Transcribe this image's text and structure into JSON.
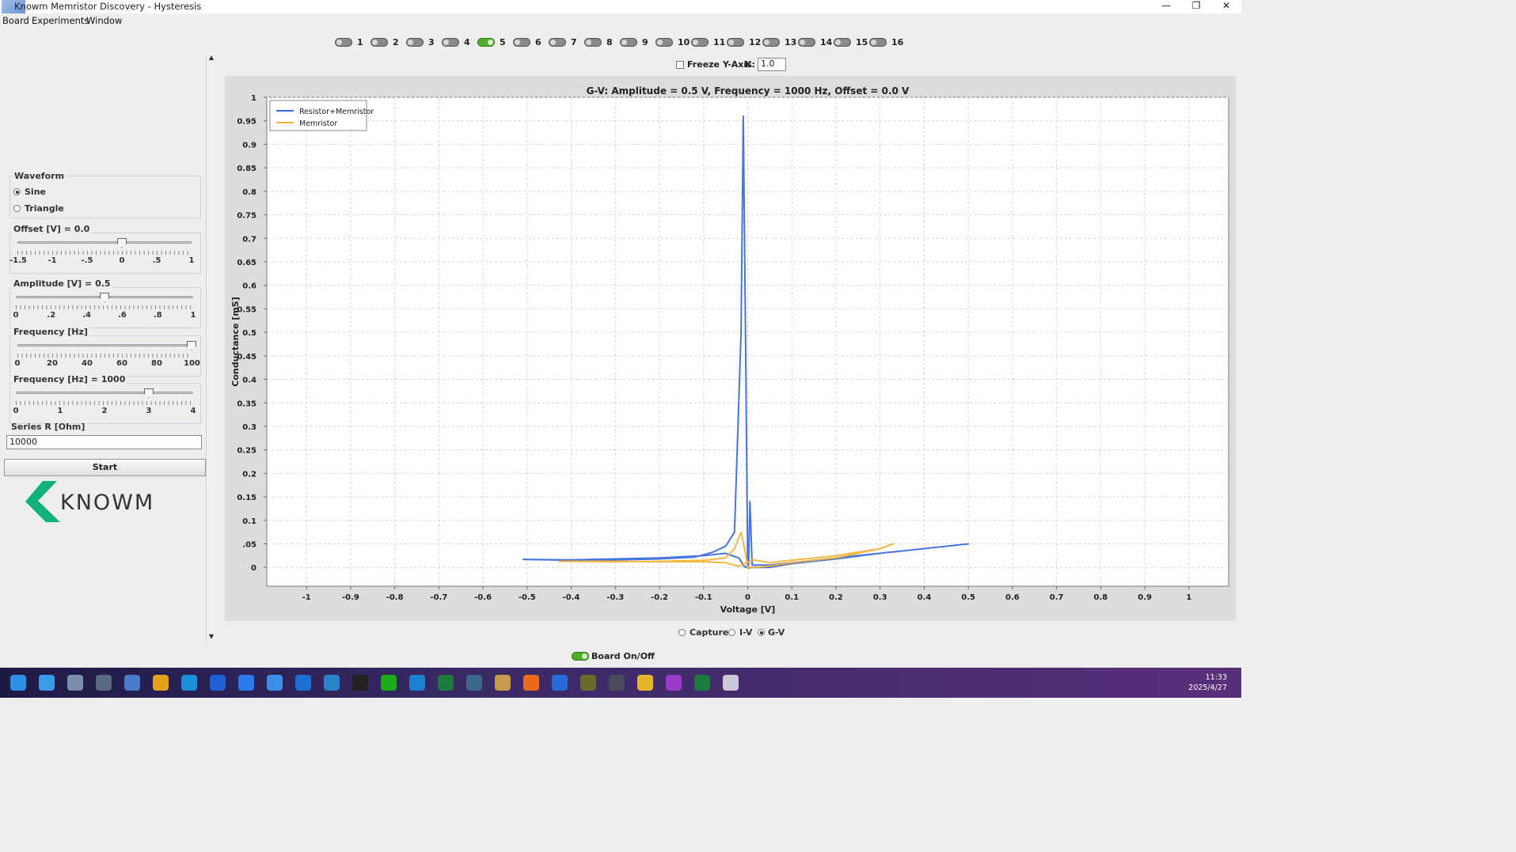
{
  "window": {
    "title": "Knowm Memristor Discovery - Hysteresis",
    "minimize_glyph": "—",
    "restore_glyph": "❐",
    "close_glyph": "✕"
  },
  "menu": [
    "Board",
    "Experiments",
    "Window"
  ],
  "channels": {
    "labels": [
      "1",
      "2",
      "3",
      "4",
      "5",
      "6",
      "7",
      "8",
      "9",
      "10",
      "11",
      "12",
      "13",
      "14",
      "15",
      "16"
    ],
    "active": "5",
    "active_color": "#4caf2a"
  },
  "freeze": {
    "label": "Freeze Y-Axis",
    "checked": false,
    "k_label": "K:",
    "k_value": "1.0"
  },
  "waveform": {
    "title": "Waveform",
    "options": [
      "Sine",
      "Triangle"
    ],
    "selected": "Sine"
  },
  "offset": {
    "title": "Offset [V] = 0.0",
    "value": 0.0,
    "min": -1.5,
    "max": 1,
    "ticks": [
      "-1.5",
      "-1",
      "-.5",
      "0",
      ".5",
      "1"
    ]
  },
  "amplitude": {
    "title": "Amplitude [V] = 0.5",
    "value": 0.5,
    "min": 0,
    "max": 1,
    "ticks": [
      "0",
      ".2",
      ".4",
      ".6",
      ".8",
      "1"
    ]
  },
  "frequency_pct": {
    "title": "Frequency [Hz]",
    "value": 100,
    "min": 0,
    "max": 100,
    "ticks": [
      "0",
      "20",
      "40",
      "60",
      "80",
      "100"
    ]
  },
  "frequency_exp": {
    "title": "Frequency [Hz] = 1000",
    "value": 3,
    "min": 0,
    "max": 4,
    "ticks": [
      "0",
      "1",
      "2",
      "3",
      "4"
    ]
  },
  "series_r": {
    "label": "Series R [Ohm]",
    "value": "10000"
  },
  "start_label": "Start",
  "logo_text": "KNOWM",
  "plot_modes": {
    "options": [
      "Capture",
      "I-V",
      "G-V"
    ],
    "selected": "G-V"
  },
  "board_toggle": {
    "label": "Board On/Off",
    "on": true
  },
  "taskbar": {
    "time": "11:33",
    "date": "2025/4/27",
    "icons": [
      "windows-start-icon",
      "notepad-icon",
      "settings-icon",
      "calculator-icon",
      "photos-icon",
      "chrome-icon",
      "edge-icon",
      "app-v-icon",
      "feishu-icon",
      "contacts-icon",
      "k-app-icon",
      "mx-icon",
      "qq-icon",
      "wechat-icon",
      "vscode-icon",
      "excel-green-icon",
      "compass-icon",
      "folder-app-icon",
      "arrow-app-icon",
      "v-app-icon",
      "spu-icon",
      "network-icon",
      "file-explorer-icon",
      "purple-app-icon",
      "excel-icon",
      "paint-icon"
    ]
  },
  "chart_data": {
    "type": "line",
    "title": "G-V: Amplitude = 0.5 V, Frequency = 1000 Hz, Offset = 0.0 V",
    "xlabel": "Voltage [V]",
    "ylabel": "Conductance [mS]",
    "xlim": [
      -1.09,
      1.09
    ],
    "ylim": [
      -0.04,
      1.0
    ],
    "xticks": [
      -1,
      -0.9,
      -0.8,
      -0.7,
      -0.6,
      -0.5,
      -0.4,
      -0.3,
      -0.2,
      -0.1,
      0,
      0.1,
      0.2,
      0.3,
      0.4,
      0.5,
      0.6,
      0.7,
      0.8,
      0.9,
      1
    ],
    "xtick_labels": [
      "-1",
      "-0.9",
      "-0.8",
      "-0.7",
      "-0.6",
      "-0.5",
      "-0.4",
      "-0.3",
      "-0.2",
      "-0.1",
      "0",
      "0.1",
      "0.2",
      "0.3",
      "0.4",
      "0.5",
      "0.6",
      "0.7",
      "0.8",
      "0.9",
      "1"
    ],
    "yticks": [
      0,
      0.05,
      0.1,
      0.15,
      0.2,
      0.25,
      0.3,
      0.35,
      0.4,
      0.45,
      0.5,
      0.55,
      0.6,
      0.65,
      0.7,
      0.75,
      0.8,
      0.85,
      0.9,
      0.95,
      1
    ],
    "ytick_labels": [
      "0",
      ".05",
      "0.1",
      "0.15",
      "0.2",
      "0.25",
      "0.3",
      "0.35",
      "0.4",
      "0.45",
      "0.5",
      "0.55",
      "0.6",
      "0.65",
      "0.7",
      "0.75",
      "0.8",
      "0.85",
      "0.9",
      "0.95",
      "1"
    ],
    "grid": true,
    "legend_position": "top-left",
    "series": [
      {
        "name": "Resistor+Memristor",
        "color": "#3366dd",
        "x": [
          -0.51,
          -0.4,
          -0.3,
          -0.2,
          -0.12,
          -0.08,
          -0.05,
          -0.03,
          -0.015,
          -0.01,
          -0.005,
          0.0,
          0.002,
          0.005,
          0.05,
          0.1,
          0.2,
          0.3,
          0.4,
          0.5,
          0.4,
          0.3,
          0.2,
          0.1,
          0.05,
          0.01,
          0.005,
          0.002,
          -0.005,
          -0.01,
          -0.02,
          -0.05,
          -0.1,
          -0.2,
          -0.3,
          -0.4,
          -0.51
        ],
        "y": [
          0.017,
          0.015,
          0.016,
          0.018,
          0.022,
          0.032,
          0.045,
          0.075,
          0.5,
          0.96,
          0.5,
          0.0,
          -0.002,
          0.0,
          0.0,
          0.008,
          0.018,
          0.03,
          0.04,
          0.05,
          0.04,
          0.03,
          0.02,
          0.01,
          0.005,
          0.005,
          0.14,
          0.005,
          0.0,
          0.005,
          0.02,
          0.03,
          0.025,
          0.02,
          0.018,
          0.016,
          0.017
        ]
      },
      {
        "name": "Memristor",
        "color": "#f5b030",
        "x": [
          -0.43,
          -0.3,
          -0.2,
          -0.1,
          -0.05,
          -0.03,
          -0.015,
          -0.005,
          0.0,
          0.005,
          0.02,
          0.05,
          0.1,
          0.2,
          0.3,
          0.33,
          0.3,
          0.2,
          0.1,
          0.05,
          0.02,
          0.01,
          -0.02,
          -0.05,
          -0.1,
          -0.2,
          -0.3,
          -0.43
        ],
        "y": [
          0.013,
          0.012,
          0.013,
          0.015,
          0.02,
          0.04,
          0.075,
          0.03,
          -0.002,
          0.0,
          0.0,
          0.003,
          0.01,
          0.02,
          0.04,
          0.05,
          0.04,
          0.025,
          0.015,
          0.01,
          0.015,
          0.016,
          0.002,
          0.01,
          0.012,
          0.012,
          0.013,
          0.013
        ]
      }
    ]
  }
}
